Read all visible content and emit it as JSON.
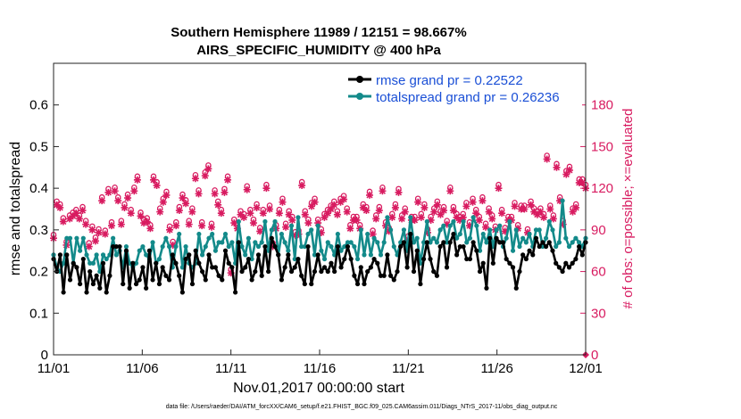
{
  "colors": {
    "rmse": "#000000",
    "spread": "#138a8a",
    "obs": "#d81b60",
    "legend_text": "#1a4fd6"
  },
  "chart_data": {
    "type": "line",
    "title": "Southern Hemisphere 11989 / 12151 = 98.667%",
    "subtitle": "AIRS_SPECIFIC_HUMIDITY @ 400 hPa",
    "xlabel": "Nov.01,2017 00:00:00 start",
    "ylabel": "rmse and totalspread",
    "y2label": "# of obs: o=possible; ×=evaluated",
    "footnote": "data file: /Users/raeder/DAI/ATM_forcXX/CAM6_setup/f.e21.FHIST_BGC.f09_025.CAM6assim.011/Diags_NTrS_2017-11/obs_diag_output.nc",
    "xlim": [
      0,
      30
    ],
    "ylim": [
      0,
      0.7
    ],
    "y2lim": [
      0,
      210
    ],
    "xticks": [
      0,
      5,
      10,
      15,
      20,
      25,
      30
    ],
    "xtick_labels": [
      "11/01",
      "11/06",
      "11/11",
      "11/16",
      "11/21",
      "11/26",
      "12/01"
    ],
    "yticks": [
      0,
      0.1,
      0.2,
      0.3,
      0.4,
      0.5,
      0.6
    ],
    "ytick_labels": [
      "0",
      "0.1",
      "0.2",
      "0.3",
      "0.4",
      "0.5",
      "0.6"
    ],
    "y2ticks": [
      0,
      30,
      60,
      90,
      120,
      150,
      180
    ],
    "y2tick_labels": [
      "0",
      "30",
      "60",
      "90",
      "120",
      "150",
      "180"
    ],
    "legend": {
      "position": "top-right",
      "entries": [
        {
          "name": "rmse grand pr = 0.22522",
          "color": "#000000"
        },
        {
          "name": "totalspread grand pr = 0.26236",
          "color": "#138a8a"
        }
      ]
    },
    "series": [
      {
        "name": "rmse",
        "axis": "left",
        "values": [
          0.23,
          0.2,
          0.24,
          0.15,
          0.24,
          0.18,
          0.22,
          0.21,
          0.17,
          0.23,
          0.15,
          0.2,
          0.17,
          0.19,
          0.16,
          0.22,
          0.15,
          0.19,
          0.26,
          0.26,
          0.26,
          0.17,
          0.25,
          0.16,
          0.22,
          0.17,
          0.18,
          0.21,
          0.16,
          0.25,
          0.18,
          0.22,
          0.17,
          0.21,
          0.19,
          0.18,
          0.24,
          0.22,
          0.19,
          0.15,
          0.23,
          0.24,
          0.17,
          0.25,
          0.22,
          0.2,
          0.18,
          0.24,
          0.21,
          0.21,
          0.19,
          0.18,
          0.25,
          0.22,
          0.21,
          0.15,
          0.27,
          0.2,
          0.21,
          0.23,
          0.18,
          0.2,
          0.24,
          0.19,
          0.26,
          0.2,
          0.28,
          0.26,
          0.24,
          0.18,
          0.21,
          0.24,
          0.2,
          0.21,
          0.23,
          0.19,
          0.17,
          0.26,
          0.17,
          0.2,
          0.24,
          0.2,
          0.21,
          0.2,
          0.22,
          0.2,
          0.26,
          0.21,
          0.23,
          0.26,
          0.23,
          0.19,
          0.17,
          0.21,
          0.17,
          0.2,
          0.21,
          0.23,
          0.22,
          0.19,
          0.19,
          0.24,
          0.19,
          0.18,
          0.2,
          0.26,
          0.27,
          0.21,
          0.29,
          0.2,
          0.25,
          0.17,
          0.23,
          0.27,
          0.23,
          0.2,
          0.19,
          0.26,
          0.27,
          0.21,
          0.27,
          0.29,
          0.24,
          0.26,
          0.26,
          0.23,
          0.23,
          0.27,
          0.25,
          0.2,
          0.22,
          0.16,
          0.28,
          0.22,
          0.28,
          0.27,
          0.27,
          0.23,
          0.22,
          0.21,
          0.16,
          0.2,
          0.24,
          0.23,
          0.25,
          0.24,
          0.28,
          0.26,
          0.27,
          0.26,
          0.27,
          0.25,
          0.22,
          0.21,
          0.2,
          0.22,
          0.21,
          0.22,
          0.23,
          0.26,
          0.24,
          0.27
        ]
      },
      {
        "name": "totalspread",
        "axis": "left",
        "values": [
          0.24,
          0.21,
          0.2,
          0.22,
          0.28,
          0.28,
          0.22,
          0.28,
          0.25,
          0.28,
          0.24,
          0.22,
          0.22,
          0.24,
          0.2,
          0.24,
          0.23,
          0.24,
          0.28,
          0.24,
          0.25,
          0.21,
          0.26,
          0.22,
          0.21,
          0.22,
          0.25,
          0.26,
          0.24,
          0.23,
          0.27,
          0.22,
          0.23,
          0.26,
          0.28,
          0.26,
          0.21,
          0.26,
          0.29,
          0.21,
          0.26,
          0.22,
          0.21,
          0.22,
          0.29,
          0.24,
          0.26,
          0.28,
          0.29,
          0.25,
          0.27,
          0.27,
          0.29,
          0.26,
          0.27,
          0.22,
          0.32,
          0.26,
          0.24,
          0.28,
          0.23,
          0.27,
          0.26,
          0.27,
          0.32,
          0.25,
          0.3,
          0.32,
          0.24,
          0.29,
          0.27,
          0.25,
          0.31,
          0.23,
          0.33,
          0.26,
          0.26,
          0.29,
          0.3,
          0.24,
          0.31,
          0.25,
          0.23,
          0.27,
          0.26,
          0.24,
          0.29,
          0.25,
          0.26,
          0.27,
          0.27,
          0.26,
          0.23,
          0.3,
          0.24,
          0.29,
          0.24,
          0.28,
          0.27,
          0.24,
          0.27,
          0.33,
          0.3,
          0.26,
          0.24,
          0.27,
          0.3,
          0.25,
          0.33,
          0.27,
          0.28,
          0.22,
          0.27,
          0.32,
          0.27,
          0.28,
          0.27,
          0.3,
          0.31,
          0.27,
          0.31,
          0.32,
          0.28,
          0.29,
          0.32,
          0.27,
          0.28,
          0.33,
          0.31,
          0.25,
          0.29,
          0.27,
          0.3,
          0.26,
          0.3,
          0.31,
          0.26,
          0.28,
          0.32,
          0.25,
          0.3,
          0.26,
          0.28,
          0.27,
          0.29,
          0.26,
          0.3,
          0.3,
          0.26,
          0.28,
          0.32,
          0.3,
          0.26,
          0.27,
          0.37,
          0.28,
          0.26,
          0.27,
          0.28,
          0.27,
          0.26,
          0.28
        ]
      },
      {
        "name": "obs_possible",
        "axis": "right",
        "marker": "o",
        "values": [
          84,
          108,
          106,
          96,
          79,
          98,
          100,
          102,
          98,
          104,
          94,
          78,
          90,
          82,
          88,
          111,
          87,
          117,
          93,
          118,
          111,
          94,
          106,
          113,
          102,
          118,
          126,
          100,
          95,
          96,
          91,
          126,
          122,
          103,
          110,
          115,
          90,
          79,
          93,
          104,
          113,
          109,
          94,
          103,
          127,
          116,
          93,
          129,
          134,
          92,
          116,
          108,
          102,
          117,
          126,
          59,
          95,
          91,
          101,
          99,
          119,
          102,
          95,
          106,
          89,
          102,
          120,
          105,
          78,
          91,
          102,
          110,
          92,
          101,
          97,
          86,
          87,
          122,
          101,
          95,
          107,
          110,
          95,
          88,
          99,
          102,
          105,
          108,
          101,
          110,
          112,
          103,
          91,
          97,
          97,
          91,
          106,
          104,
          115,
          87,
          98,
          104,
          118,
          93,
          89,
          99,
          106,
          117,
          98,
          103,
          83,
          97,
          97,
          110,
          99,
          106,
          88,
          97,
          103,
          108,
          101,
          104,
          94,
          118,
          104,
          99,
          97,
          99,
          107,
          93,
          110,
          102,
          97,
          111,
          92,
          103,
          98,
          90,
          120,
          102,
          89,
          97,
          97,
          107,
          91,
          105,
          105,
          88,
          108,
          103,
          101,
          103,
          99,
          141,
          105,
          98,
          135,
          111,
          94,
          130,
          133,
          103,
          106,
          124,
          124,
          120
        ]
      },
      {
        "name": "obs_evaluated",
        "axis": "right",
        "marker": "x",
        "values": [
          84,
          108,
          106,
          96,
          79,
          98,
          100,
          102,
          98,
          104,
          94,
          78,
          90,
          82,
          88,
          111,
          87,
          117,
          93,
          118,
          111,
          94,
          106,
          113,
          102,
          118,
          126,
          100,
          95,
          96,
          91,
          126,
          122,
          103,
          110,
          115,
          90,
          79,
          93,
          104,
          113,
          109,
          94,
          103,
          127,
          116,
          93,
          129,
          134,
          92,
          116,
          108,
          102,
          117,
          126,
          59,
          95,
          91,
          101,
          99,
          119,
          102,
          95,
          106,
          89,
          102,
          120,
          105,
          78,
          91,
          102,
          110,
          92,
          101,
          97,
          86,
          87,
          122,
          101,
          95,
          107,
          110,
          95,
          88,
          99,
          102,
          105,
          108,
          101,
          110,
          112,
          103,
          91,
          97,
          97,
          91,
          106,
          104,
          115,
          87,
          98,
          104,
          118,
          93,
          89,
          99,
          106,
          117,
          98,
          103,
          83,
          97,
          97,
          110,
          99,
          106,
          88,
          97,
          103,
          108,
          101,
          104,
          94,
          118,
          104,
          99,
          97,
          99,
          107,
          93,
          110,
          102,
          97,
          111,
          92,
          103,
          98,
          90,
          120,
          102,
          89,
          97,
          97,
          107,
          91,
          105,
          105,
          88,
          108,
          103,
          101,
          103,
          99,
          141,
          105,
          98,
          135,
          111,
          94,
          130,
          133,
          103,
          106,
          124,
          124,
          120
        ]
      }
    ]
  }
}
